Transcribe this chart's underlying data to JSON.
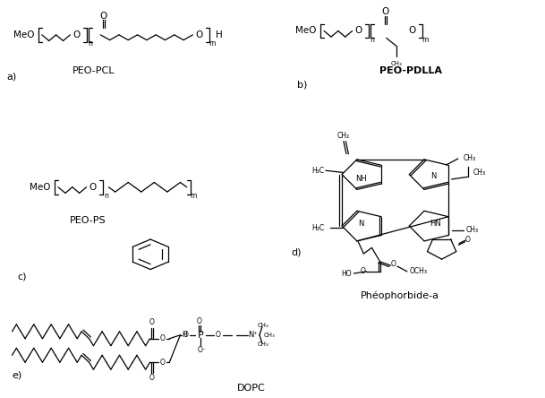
{
  "bg_color": "#ffffff",
  "figsize": [
    6.09,
    4.44
  ],
  "dpi": 100,
  "compound_names": {
    "pcl": "PEO-PCL",
    "pdlla": "PEO-PDLLA",
    "ps": "PEO-PS",
    "pheo": "Phéophorbide-a",
    "dopc": "DOPC"
  },
  "labels": {
    "a": "a)",
    "b": "b)",
    "c": "c)",
    "d": "d)",
    "e": "e)"
  }
}
